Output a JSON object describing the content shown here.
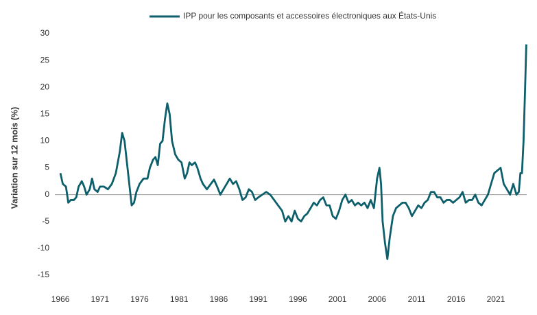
{
  "chart_data": {
    "type": "line",
    "y_label": "Variation sur 12 mois (%)",
    "xlim": [
      1965.3,
      2024.9
    ],
    "xticks": [
      1966,
      1971,
      1976,
      1981,
      1986,
      1991,
      1996,
      2001,
      2006,
      2011,
      2016,
      2021
    ],
    "ylim": [
      -17.5,
      31
    ],
    "yticks": [
      -15,
      -10,
      -5,
      0,
      5,
      10,
      15,
      20,
      25,
      30
    ],
    "zero_line": true,
    "legend": "top",
    "series": [
      {
        "name": "IPP pour les composants et accessoires électroniques aux États-Unis",
        "color": "#0d5f6b",
        "x": [
          1966.0,
          1966.3,
          1966.7,
          1967.0,
          1967.3,
          1967.7,
          1968.0,
          1968.3,
          1968.7,
          1969.0,
          1969.3,
          1969.7,
          1970.0,
          1970.3,
          1970.7,
          1971.0,
          1971.5,
          1972.0,
          1972.5,
          1973.0,
          1973.5,
          1973.8,
          1974.1,
          1974.4,
          1974.7,
          1975.0,
          1975.3,
          1975.6,
          1976.0,
          1976.5,
          1977.0,
          1977.3,
          1977.7,
          1978.0,
          1978.3,
          1978.6,
          1978.9,
          1979.2,
          1979.5,
          1979.8,
          1980.1,
          1980.5,
          1980.9,
          1981.3,
          1981.7,
          1982.0,
          1982.3,
          1982.6,
          1983.0,
          1983.3,
          1983.7,
          1984.0,
          1984.5,
          1985.0,
          1985.4,
          1985.8,
          1986.2,
          1986.6,
          1987.0,
          1987.4,
          1987.8,
          1988.2,
          1988.6,
          1989.0,
          1989.4,
          1989.8,
          1990.2,
          1990.6,
          1991.0,
          1991.5,
          1992.0,
          1992.5,
          1993.0,
          1993.5,
          1994.0,
          1994.4,
          1994.8,
          1995.2,
          1995.6,
          1996.0,
          1996.4,
          1996.8,
          1997.2,
          1997.6,
          1998.0,
          1998.4,
          1998.8,
          1999.2,
          1999.6,
          2000.0,
          2000.4,
          2000.8,
          2001.2,
          2001.6,
          2002.0,
          2002.4,
          2002.8,
          2003.2,
          2003.6,
          2004.0,
          2004.4,
          2004.8,
          2005.2,
          2005.6,
          2006.0,
          2006.3,
          2006.5,
          2006.7,
          2007.0,
          2007.3,
          2007.6,
          2008.0,
          2008.4,
          2008.8,
          2009.2,
          2009.6,
          2010.0,
          2010.4,
          2010.8,
          2011.2,
          2011.6,
          2012.0,
          2012.4,
          2012.8,
          2013.2,
          2013.6,
          2014.0,
          2014.4,
          2014.8,
          2015.2,
          2015.6,
          2016.0,
          2016.4,
          2016.8,
          2017.2,
          2017.6,
          2018.0,
          2018.4,
          2018.8,
          2019.2,
          2019.6,
          2020.0,
          2020.4,
          2020.8,
          2021.2,
          2021.6,
          2022.0,
          2022.4,
          2022.8,
          2023.2,
          2023.6,
          2023.9,
          2024.1,
          2024.3,
          2024.5,
          2024.7,
          2024.85
        ],
        "values": [
          4,
          2,
          1.5,
          -1.5,
          -1,
          -1,
          -0.5,
          1.5,
          2.5,
          1.5,
          0,
          1,
          3,
          1,
          0.5,
          1.5,
          1.5,
          1,
          2,
          4,
          8,
          11.5,
          10,
          6,
          2,
          -2,
          -1.5,
          0.5,
          2,
          3,
          3,
          5,
          6.5,
          7,
          5.5,
          9.5,
          10,
          14,
          17,
          15,
          10,
          7.5,
          6.5,
          6,
          3,
          4,
          6,
          5.5,
          6,
          5,
          3,
          2,
          1,
          2,
          2.8,
          1.5,
          0,
          1,
          2,
          3,
          2,
          2.5,
          1,
          -1,
          -0.5,
          1,
          0.5,
          -1,
          -0.5,
          0,
          0.5,
          0,
          -1,
          -2,
          -3,
          -5,
          -4,
          -5,
          -3,
          -4.5,
          -5,
          -4,
          -3.5,
          -2.5,
          -1.5,
          -2,
          -1,
          -0.5,
          -2,
          -2,
          -4,
          -4.5,
          -3,
          -1,
          0,
          -1.5,
          -1,
          -2,
          -1.5,
          -2,
          -1.5,
          -2.5,
          -1,
          -2.5,
          3,
          5,
          2,
          -5,
          -9,
          -12,
          -8,
          -4,
          -2.5,
          -2,
          -1.5,
          -1.5,
          -2.5,
          -4,
          -3,
          -2,
          -2.5,
          -1.5,
          -1,
          0.5,
          0.5,
          -0.5,
          -0.5,
          -1.5,
          -1,
          -1,
          -1.5,
          -1,
          -0.5,
          0.5,
          -1.5,
          -1,
          -1,
          0,
          -1.5,
          -2,
          -1,
          0,
          2,
          4,
          4.5,
          5,
          2,
          1,
          0,
          2,
          0,
          0.5,
          4,
          4,
          10,
          20,
          28
        ]
      }
    ]
  }
}
